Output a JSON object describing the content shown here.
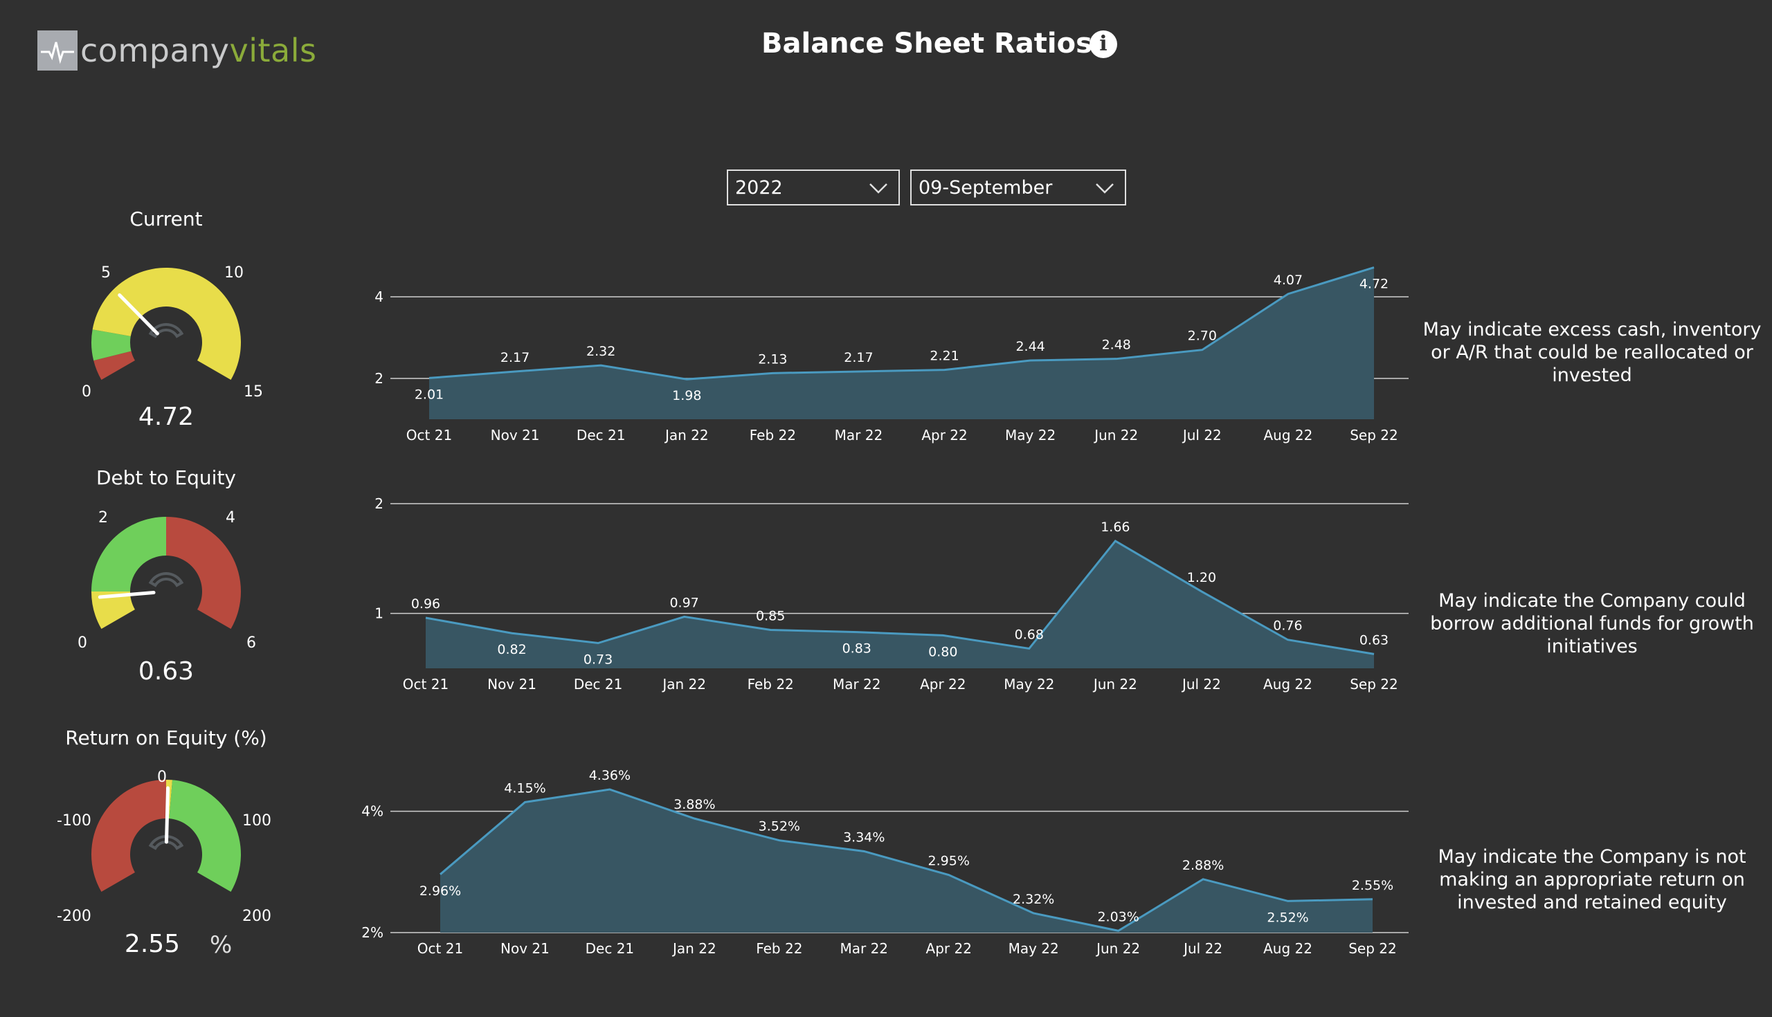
{
  "header": {
    "logo_part1": "company",
    "logo_part2": "vitals",
    "title": "Balance Sheet Ratios",
    "info_icon": "info-icon"
  },
  "filters": {
    "year": "2022",
    "month": "09-September"
  },
  "colors": {
    "background": "#303030",
    "area_fill": "#385663",
    "line": "#4a9ac0",
    "gauge_red": "#b84a3e",
    "gauge_green": "#6fcf5b",
    "gauge_yellow": "#e8dd4a"
  },
  "gauges": [
    {
      "title": "Current",
      "value_label": "4.72",
      "value": 4.72,
      "min": 0,
      "max": 15,
      "ticks": [
        "0",
        "5",
        "10",
        "15"
      ],
      "bands": [
        {
          "from": 0,
          "to": 1,
          "color": "#b84a3e"
        },
        {
          "from": 1,
          "to": 2.5,
          "color": "#6fcf5b"
        },
        {
          "from": 2.5,
          "to": 15,
          "color": "#e8dd4a"
        }
      ]
    },
    {
      "title": "Debt to Equity",
      "value_label": "0.63",
      "value": 0.63,
      "min": 0,
      "max": 6,
      "ticks": [
        "0",
        "2",
        "4",
        "6"
      ],
      "bands": [
        {
          "from": 0,
          "to": 0.75,
          "color": "#e8dd4a"
        },
        {
          "from": 0.75,
          "to": 3,
          "color": "#6fcf5b"
        },
        {
          "from": 3,
          "to": 6,
          "color": "#b84a3e"
        }
      ]
    },
    {
      "title": "Return on Equity (%)",
      "value_label": "2.55",
      "unit": "%",
      "value": 2.55,
      "min": -200,
      "max": 200,
      "ticks": [
        "-200",
        "-100",
        "0",
        "100",
        "200"
      ],
      "bands": [
        {
          "from": -200,
          "to": 0,
          "color": "#b84a3e"
        },
        {
          "from": 0,
          "to": 8,
          "color": "#e8dd4a"
        },
        {
          "from": 8,
          "to": 200,
          "color": "#6fcf5b"
        }
      ]
    }
  ],
  "chart_data": [
    {
      "type": "area",
      "categories": [
        "Oct 21",
        "Nov 21",
        "Dec 21",
        "Jan 22",
        "Feb 22",
        "Mar 22",
        "Apr 22",
        "May 22",
        "Jun 22",
        "Jul 22",
        "Aug 22",
        "Sep 22"
      ],
      "values": [
        2.01,
        2.17,
        2.32,
        1.98,
        2.13,
        2.17,
        2.21,
        2.44,
        2.48,
        2.7,
        4.07,
        4.72
      ],
      "labels": [
        "2.01",
        "2.17",
        "2.32",
        "1.98",
        "2.13",
        "2.17",
        "2.21",
        "2.44",
        "2.48",
        "2.70",
        "4.07",
        "4.72"
      ],
      "y_ticks": [
        "2",
        "4"
      ],
      "ylim": [
        1,
        5
      ]
    },
    {
      "type": "area",
      "categories": [
        "Oct 21",
        "Nov 21",
        "Dec 21",
        "Jan 22",
        "Feb 22",
        "Mar 22",
        "Apr 22",
        "May 22",
        "Jun 22",
        "Jul 22",
        "Aug 22",
        "Sep 22"
      ],
      "values": [
        0.96,
        0.82,
        0.73,
        0.97,
        0.85,
        0.83,
        0.8,
        0.68,
        1.66,
        1.2,
        0.76,
        0.63
      ],
      "labels": [
        "0.96",
        "0.82",
        "0.73",
        "0.97",
        "0.85",
        "0.83",
        "0.80",
        "0.68",
        "1.66",
        "1.20",
        "0.76",
        "0.63"
      ],
      "y_ticks": [
        "1",
        "2"
      ],
      "ylim": [
        0.5,
        2
      ]
    },
    {
      "type": "area",
      "categories": [
        "Oct 21",
        "Nov 21",
        "Dec 21",
        "Jan 22",
        "Feb 22",
        "Mar 22",
        "Apr 22",
        "May 22",
        "Jun 22",
        "Jul 22",
        "Aug 22",
        "Sep 22"
      ],
      "values": [
        2.96,
        4.15,
        4.36,
        3.88,
        3.52,
        3.34,
        2.95,
        2.32,
        2.03,
        2.88,
        2.52,
        2.55
      ],
      "labels": [
        "2.96%",
        "4.15%",
        "4.36%",
        "3.88%",
        "3.52%",
        "3.34%",
        "2.95%",
        "2.32%",
        "2.03%",
        "2.88%",
        "2.52%",
        "2.55%"
      ],
      "y_ticks": [
        "2%",
        "4%"
      ],
      "ylim": [
        2,
        4.6
      ]
    }
  ],
  "notes": [
    "May indicate excess cash, inventory or A/R that could be reallocated or invested",
    "May indicate the Company could borrow additional funds for growth initiatives",
    "May indicate the Company is not making an appropriate return on invested and retained equity"
  ]
}
